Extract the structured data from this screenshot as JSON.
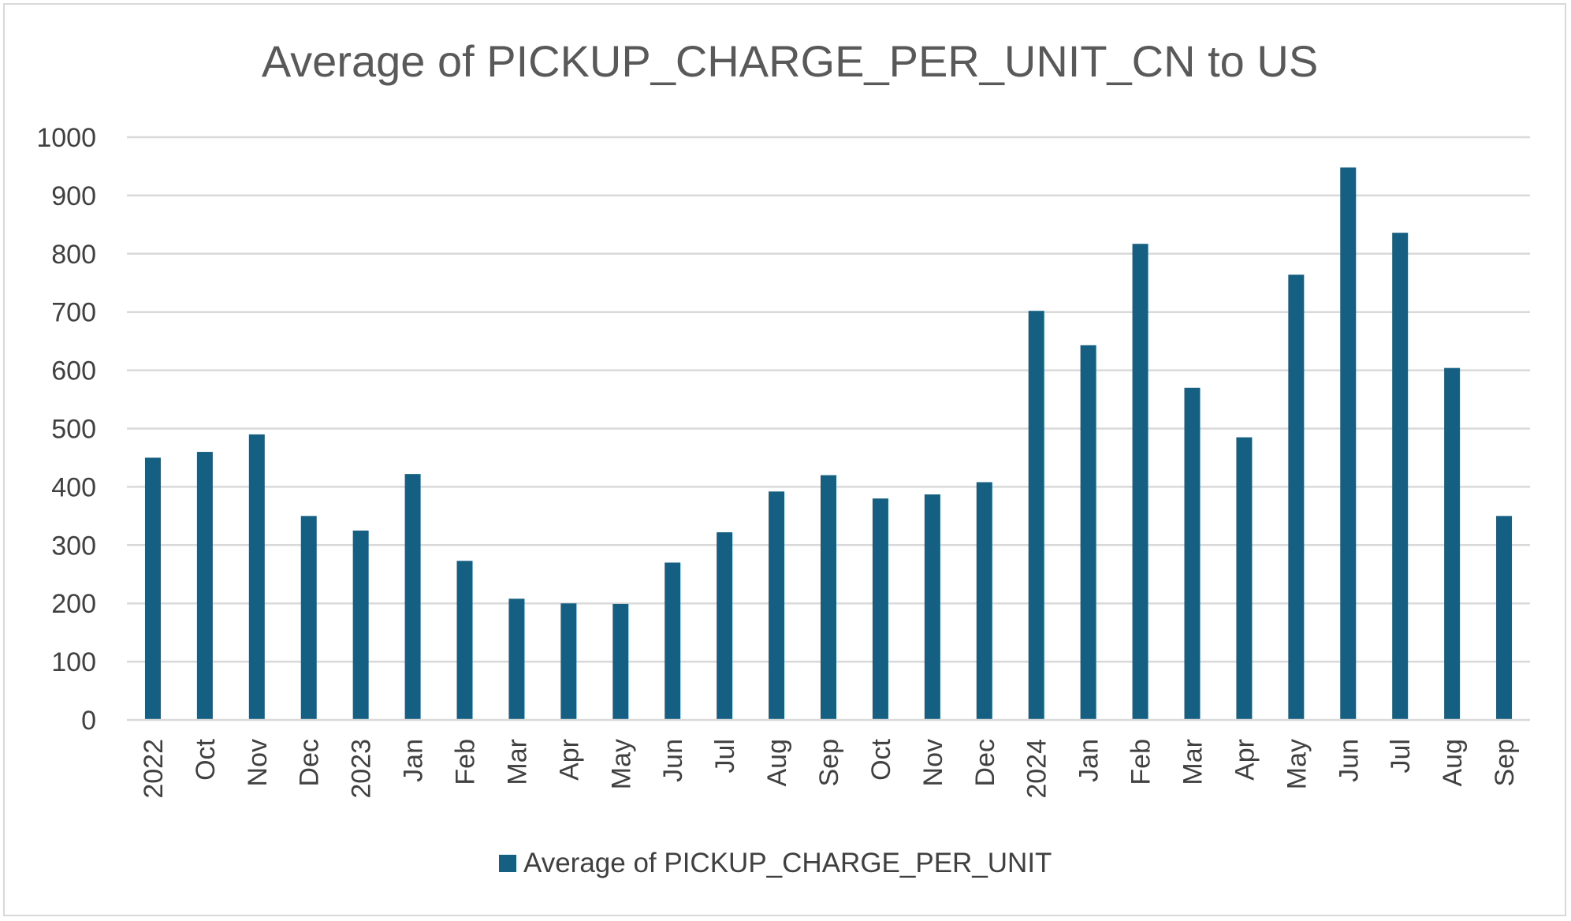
{
  "chart_data": {
    "type": "bar",
    "title": "Average of PICKUP_CHARGE_PER_UNIT_CN to US",
    "xlabel": "",
    "ylabel": "",
    "ylim": [
      0,
      1000
    ],
    "yticks": [
      "0",
      "100",
      "200",
      "300",
      "400",
      "500",
      "600",
      "700",
      "800",
      "900",
      "1000"
    ],
    "grid": true,
    "legend_position": "bottom",
    "categories": [
      "2022",
      "Oct",
      "Nov",
      "Dec",
      "2023",
      "Jan",
      "Feb",
      "Mar",
      "Apr",
      "May",
      "Jun",
      "Jul",
      "Aug",
      "Sep",
      "Oct",
      "Nov",
      "Dec",
      "2024",
      "Jan",
      "Feb",
      "Mar",
      "Apr",
      "May",
      "Jun",
      "Jul",
      "Aug",
      "Sep"
    ],
    "series": [
      {
        "name": "Average of PICKUP_CHARGE_PER_UNIT",
        "color": "#156082",
        "values": [
          450,
          460,
          490,
          350,
          325,
          422,
          273,
          208,
          200,
          199,
          270,
          322,
          392,
          420,
          380,
          387,
          408,
          702,
          643,
          817,
          570,
          485,
          764,
          948,
          836,
          604,
          350
        ]
      }
    ]
  }
}
